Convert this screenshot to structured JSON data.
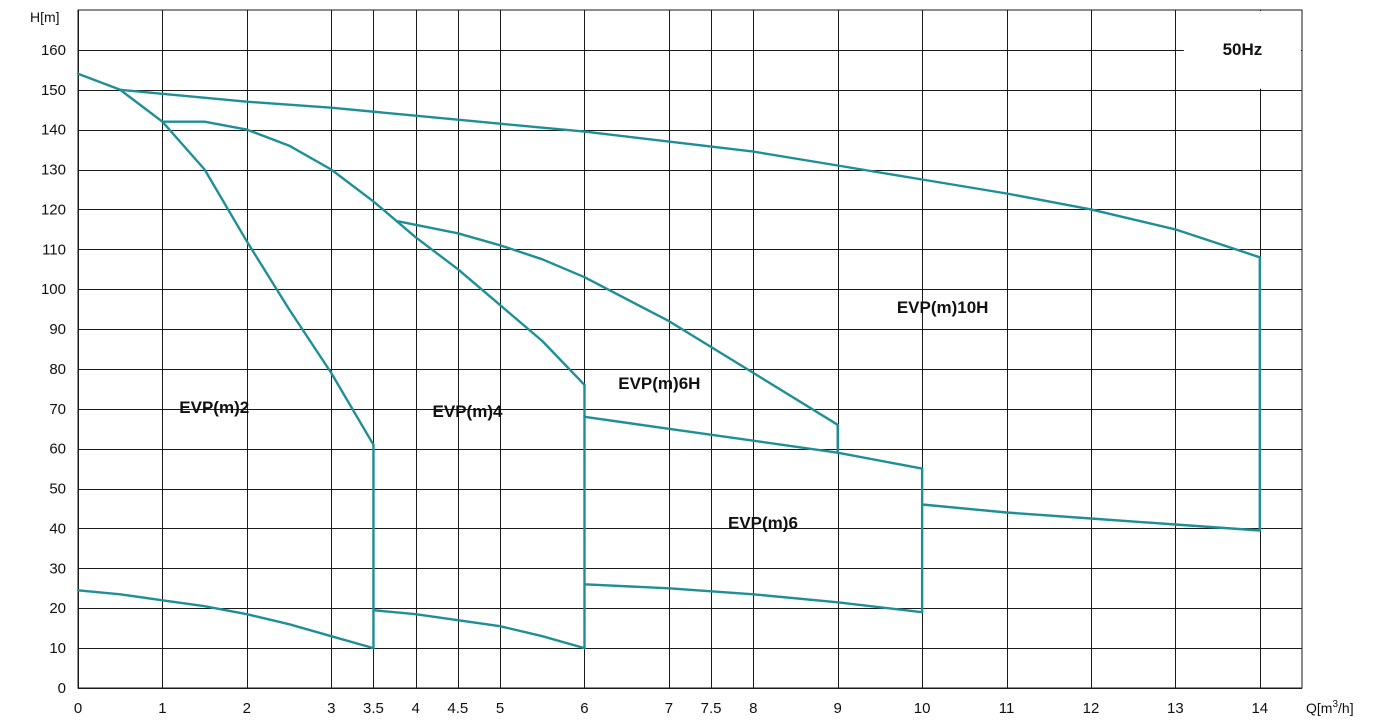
{
  "chart_data": {
    "type": "line",
    "title": "",
    "frequency_badge": "50Hz",
    "xlabel": "Q[m",
    "xlabel_sup": "3",
    "xlabel_tail": "/h]",
    "ylabel": "H[m]",
    "xlim": [
      0,
      14.5
    ],
    "ylim": [
      0,
      170
    ],
    "grid": true,
    "colors": {
      "curve": "#1f8f96",
      "grid": "#1a1a1a",
      "text": "#111111"
    },
    "x_ticks": [
      {
        "value": 0,
        "label": "0"
      },
      {
        "value": 1,
        "label": "1"
      },
      {
        "value": 2,
        "label": "2"
      },
      {
        "value": 3,
        "label": "3"
      },
      {
        "value": 3.5,
        "label": "3.5"
      },
      {
        "value": 4,
        "label": "4"
      },
      {
        "value": 4.5,
        "label": "4.5"
      },
      {
        "value": 5,
        "label": "5"
      },
      {
        "value": 6,
        "label": "6"
      },
      {
        "value": 7,
        "label": "7"
      },
      {
        "value": 7.5,
        "label": "7.5"
      },
      {
        "value": 8,
        "label": "8"
      },
      {
        "value": 9,
        "label": "9"
      },
      {
        "value": 10,
        "label": "10"
      },
      {
        "value": 11,
        "label": "11"
      },
      {
        "value": 12,
        "label": "12"
      },
      {
        "value": 13,
        "label": "13"
      },
      {
        "value": 14,
        "label": "14"
      }
    ],
    "y_ticks": [
      {
        "value": 0,
        "label": "0"
      },
      {
        "value": 10,
        "label": "10"
      },
      {
        "value": 20,
        "label": "20"
      },
      {
        "value": 30,
        "label": "30"
      },
      {
        "value": 40,
        "label": "40"
      },
      {
        "value": 50,
        "label": "50"
      },
      {
        "value": 60,
        "label": "60"
      },
      {
        "value": 70,
        "label": "70"
      },
      {
        "value": 80,
        "label": "80"
      },
      {
        "value": 90,
        "label": "90"
      },
      {
        "value": 100,
        "label": "100"
      },
      {
        "value": 110,
        "label": "110"
      },
      {
        "value": 120,
        "label": "120"
      },
      {
        "value": 130,
        "label": "130"
      },
      {
        "value": 140,
        "label": "140"
      },
      {
        "value": 150,
        "label": "150"
      },
      {
        "value": 160,
        "label": "160"
      }
    ],
    "series": [
      {
        "name": "EVP(m)2",
        "label_at": [
          1.2,
          69
        ],
        "upper": [
          [
            0,
            154
          ],
          [
            0.5,
            150
          ],
          [
            1,
            142
          ],
          [
            1.5,
            130
          ],
          [
            2,
            112
          ],
          [
            2.5,
            95
          ],
          [
            3,
            79
          ],
          [
            3.5,
            61
          ]
        ],
        "lower": [
          [
            0,
            24.5
          ],
          [
            0.5,
            23.5
          ],
          [
            1,
            22
          ],
          [
            1.5,
            20.5
          ],
          [
            2,
            18.5
          ],
          [
            2.5,
            16
          ],
          [
            3,
            13
          ],
          [
            3.5,
            10
          ]
        ]
      },
      {
        "name": "EVP(m)4",
        "label_at": [
          4.2,
          68
        ],
        "upper": [
          [
            1,
            142
          ],
          [
            1.5,
            142
          ],
          [
            2,
            140
          ],
          [
            2.5,
            136
          ],
          [
            3,
            130
          ],
          [
            3.5,
            122
          ],
          [
            4,
            113
          ],
          [
            4.5,
            105
          ],
          [
            5,
            96
          ],
          [
            5.5,
            87
          ],
          [
            6,
            76
          ]
        ],
        "lower": [
          [
            3.5,
            19.5
          ],
          [
            4,
            18.5
          ],
          [
            4.5,
            17
          ],
          [
            5,
            15.5
          ],
          [
            5.5,
            13
          ],
          [
            6,
            10
          ]
        ]
      },
      {
        "name": "EVP(m)6H",
        "label_at": [
          6.4,
          75
        ],
        "upper": [
          [
            3.8,
            117
          ],
          [
            4.5,
            114
          ],
          [
            5,
            111
          ],
          [
            5.5,
            107.5
          ],
          [
            6,
            103
          ],
          [
            7,
            92
          ],
          [
            8,
            79
          ],
          [
            9,
            66
          ]
        ],
        "lower": [
          [
            6,
            68
          ],
          [
            7,
            65
          ],
          [
            8,
            62
          ],
          [
            9,
            59
          ],
          [
            10,
            55
          ]
        ]
      },
      {
        "name": "EVP(m)6",
        "label_at": [
          7.7,
          40
        ],
        "upper": [
          [
            6,
            68
          ],
          [
            7,
            65
          ],
          [
            8,
            62
          ],
          [
            9,
            59
          ],
          [
            10,
            55
          ]
        ],
        "lower": [
          [
            6,
            26
          ],
          [
            7,
            25
          ],
          [
            8,
            23.5
          ],
          [
            9,
            21.5
          ],
          [
            10,
            19
          ]
        ]
      },
      {
        "name": "EVP(m)10H",
        "label_at": [
          9.7,
          94
        ],
        "upper": [
          [
            0.5,
            150
          ],
          [
            1,
            149
          ],
          [
            2,
            147
          ],
          [
            3,
            145.5
          ],
          [
            4,
            143.5
          ],
          [
            5,
            141.5
          ],
          [
            6,
            139.5
          ],
          [
            7,
            137
          ],
          [
            8,
            134.5
          ],
          [
            9,
            131
          ],
          [
            10,
            127.5
          ],
          [
            11,
            124
          ],
          [
            12,
            120
          ],
          [
            13,
            115
          ],
          [
            14,
            108
          ]
        ],
        "lower": [
          [
            10,
            46
          ],
          [
            11,
            44
          ],
          [
            12,
            42.5
          ],
          [
            13,
            41
          ],
          [
            14,
            39.5
          ]
        ]
      }
    ],
    "vertical_segments": [
      {
        "x": 3.5,
        "y": [
          10,
          61
        ]
      },
      {
        "x": 6,
        "y": [
          10,
          76
        ]
      },
      {
        "x": 9,
        "y": [
          59,
          66
        ]
      },
      {
        "x": 10,
        "y": [
          19,
          55
        ]
      },
      {
        "x": 14,
        "y": [
          39.5,
          108
        ]
      }
    ]
  }
}
